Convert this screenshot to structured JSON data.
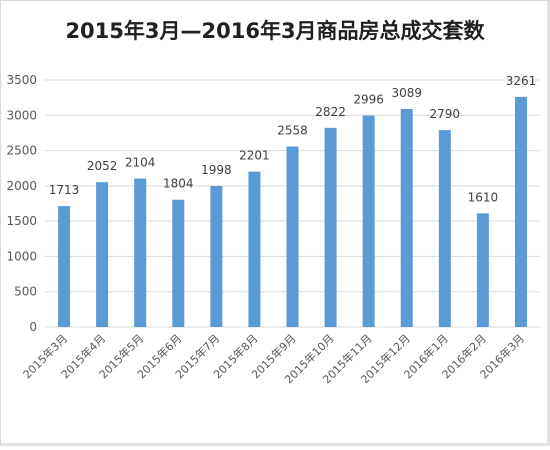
{
  "chart_data": {
    "type": "bar",
    "title": "2015年3月—2016年3月商品房总成交套数",
    "categories": [
      "2015年3月",
      "2015年4月",
      "2015年5月",
      "2015年6月",
      "2015年7月",
      "2015年8月",
      "2015年9月",
      "2015年10月",
      "2015年11月",
      "2015年12月",
      "2016年1月",
      "2016年2月",
      "2016年3月"
    ],
    "values": [
      1713,
      2052,
      2104,
      1804,
      1998,
      2201,
      2558,
      2822,
      2996,
      3089,
      2790,
      1610,
      3261
    ],
    "yticks": [
      0,
      500,
      1000,
      1500,
      2000,
      2500,
      3000,
      3500
    ],
    "ylim": [
      0,
      3500
    ],
    "grid": true,
    "legend": "none",
    "bar_color": "#5b9bd5",
    "grid_color": "#d9d9d9"
  }
}
